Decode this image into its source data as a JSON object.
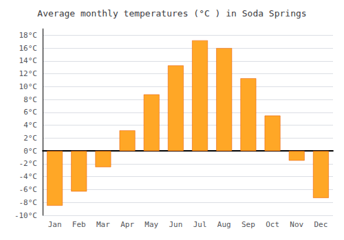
{
  "chart_data": {
    "type": "bar",
    "title": "Average monthly temperatures (°C ) in Soda Springs",
    "categories": [
      "Jan",
      "Feb",
      "Mar",
      "Apr",
      "May",
      "Jun",
      "Jul",
      "Aug",
      "Sep",
      "Oct",
      "Nov",
      "Dec"
    ],
    "values": [
      -8.5,
      -6.3,
      -2.5,
      3.2,
      8.8,
      13.3,
      17.2,
      16.0,
      11.3,
      5.5,
      -1.5,
      -7.3
    ],
    "color": "#FFA726",
    "ylim": [
      -10,
      19
    ],
    "yticks": [
      {
        "value": -10,
        "label": "-10°C"
      },
      {
        "value": -8,
        "label": "-8°C"
      },
      {
        "value": -6,
        "label": "-6°C"
      },
      {
        "value": -4,
        "label": "-4°C"
      },
      {
        "value": -2,
        "label": "-2°C"
      },
      {
        "value": 0,
        "label": "0°C"
      },
      {
        "value": 2,
        "label": "2°C"
      },
      {
        "value": 4,
        "label": "4°C"
      },
      {
        "value": 6,
        "label": "6°C"
      },
      {
        "value": 8,
        "label": "8°C"
      },
      {
        "value": 10,
        "label": "10°C"
      },
      {
        "value": 12,
        "label": "12°C"
      },
      {
        "value": 14,
        "label": "14°C"
      },
      {
        "value": 16,
        "label": "16°C"
      },
      {
        "value": 18,
        "label": "18°C"
      }
    ],
    "grid": true
  }
}
